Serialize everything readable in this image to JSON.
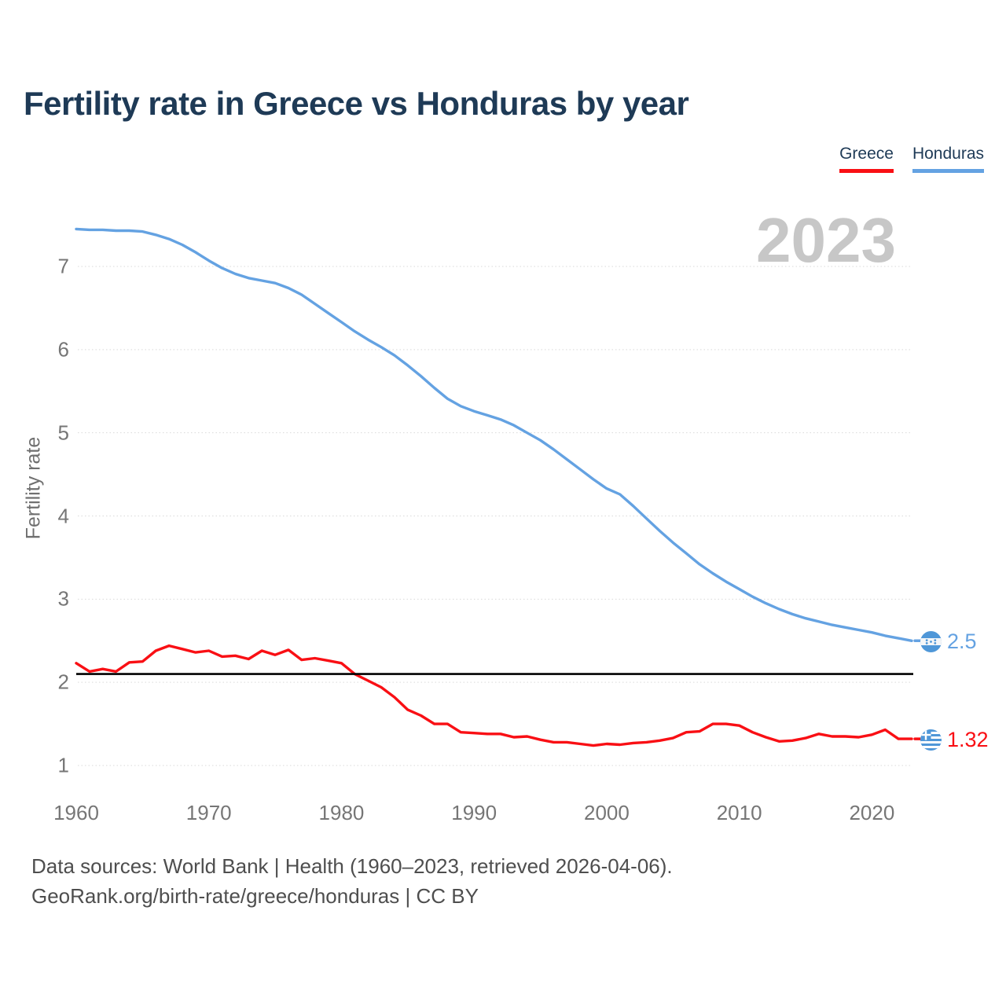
{
  "header": {
    "title": "Fertility rate in Greece vs Honduras by year"
  },
  "legend": [
    {
      "label": "Greece",
      "color": "#f90f14"
    },
    {
      "label": "Honduras",
      "color": "#64a2e2"
    }
  ],
  "watermark": "2023",
  "chart_data": {
    "type": "line",
    "title": "Fertility rate in Greece vs Honduras by year",
    "xlabel": "",
    "ylabel": "Fertility rate",
    "xlim": [
      1960,
      2023
    ],
    "ylim": [
      1,
      7.6
    ],
    "xticks": [
      1960,
      1970,
      1980,
      1990,
      2000,
      2010,
      2020
    ],
    "yticks": [
      1,
      2,
      3,
      4,
      5,
      6,
      7
    ],
    "grid": "horizontal-dotted",
    "legend_position": "top-right",
    "baseline": {
      "value": 2.1,
      "color": "#000000"
    },
    "x": [
      1960,
      1961,
      1962,
      1963,
      1964,
      1965,
      1966,
      1967,
      1968,
      1969,
      1970,
      1971,
      1972,
      1973,
      1974,
      1975,
      1976,
      1977,
      1978,
      1979,
      1980,
      1981,
      1982,
      1983,
      1984,
      1985,
      1986,
      1987,
      1988,
      1989,
      1990,
      1991,
      1992,
      1993,
      1994,
      1995,
      1996,
      1997,
      1998,
      1999,
      2000,
      2001,
      2002,
      2003,
      2004,
      2005,
      2006,
      2007,
      2008,
      2009,
      2010,
      2011,
      2012,
      2013,
      2014,
      2015,
      2016,
      2017,
      2018,
      2019,
      2020,
      2021,
      2022,
      2023
    ],
    "series": [
      {
        "name": "Greece",
        "color": "#f90f14",
        "end_label": "1.32",
        "flag": "greece",
        "values": [
          2.23,
          2.13,
          2.16,
          2.13,
          2.24,
          2.25,
          2.38,
          2.44,
          2.4,
          2.36,
          2.38,
          2.31,
          2.32,
          2.28,
          2.38,
          2.33,
          2.39,
          2.27,
          2.29,
          2.26,
          2.23,
          2.1,
          2.02,
          1.94,
          1.82,
          1.67,
          1.6,
          1.5,
          1.5,
          1.4,
          1.39,
          1.38,
          1.38,
          1.34,
          1.35,
          1.31,
          1.28,
          1.28,
          1.26,
          1.24,
          1.26,
          1.25,
          1.27,
          1.28,
          1.3,
          1.33,
          1.4,
          1.41,
          1.5,
          1.5,
          1.48,
          1.4,
          1.34,
          1.29,
          1.3,
          1.33,
          1.38,
          1.35,
          1.35,
          1.34,
          1.37,
          1.43,
          1.32,
          1.32
        ]
      },
      {
        "name": "Honduras",
        "color": "#64a2e2",
        "end_label": "2.5",
        "flag": "honduras",
        "values": [
          7.45,
          7.44,
          7.44,
          7.43,
          7.43,
          7.42,
          7.38,
          7.33,
          7.26,
          7.17,
          7.07,
          6.98,
          6.91,
          6.86,
          6.83,
          6.8,
          6.74,
          6.66,
          6.55,
          6.44,
          6.33,
          6.22,
          6.12,
          6.03,
          5.93,
          5.81,
          5.68,
          5.54,
          5.41,
          5.32,
          5.26,
          5.21,
          5.16,
          5.09,
          5.0,
          4.91,
          4.8,
          4.68,
          4.56,
          4.44,
          4.33,
          4.26,
          4.12,
          3.97,
          3.82,
          3.68,
          3.55,
          3.42,
          3.31,
          3.21,
          3.12,
          3.03,
          2.95,
          2.88,
          2.82,
          2.77,
          2.73,
          2.69,
          2.66,
          2.63,
          2.6,
          2.56,
          2.53,
          2.5
        ]
      }
    ]
  },
  "footer": {
    "line1": "Data sources: World Bank | Health (1960–2023, retrieved 2026-04-06).",
    "line2": "GeoRank.org/birth-rate/greece/honduras | CC BY"
  }
}
